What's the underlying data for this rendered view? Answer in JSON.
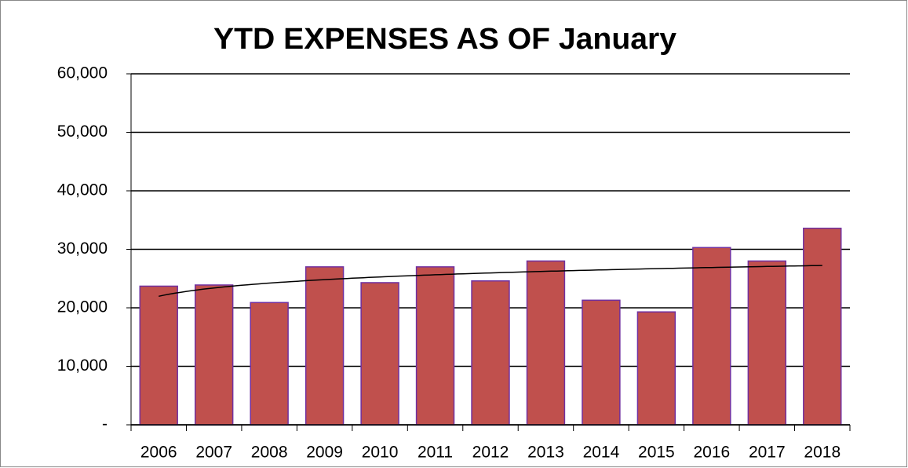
{
  "chart_data": {
    "type": "bar",
    "title": "YTD EXPENSES AS OF January",
    "categories": [
      "2006",
      "2007",
      "2008",
      "2009",
      "2010",
      "2011",
      "2012",
      "2013",
      "2014",
      "2015",
      "2016",
      "2017",
      "2018"
    ],
    "values": [
      23700,
      23900,
      20900,
      27000,
      24300,
      27000,
      24600,
      28000,
      21300,
      19300,
      30300,
      28000,
      33600
    ],
    "color": "#c0504d",
    "edge_color": "#7030a0",
    "ylim": [
      0,
      60000
    ],
    "yticks": [
      {
        "value": 0,
        "label": "-"
      },
      {
        "value": 10000,
        "label": "10,000"
      },
      {
        "value": 20000,
        "label": "20,000"
      },
      {
        "value": 30000,
        "label": "30,000"
      },
      {
        "value": 40000,
        "label": "40,000"
      },
      {
        "value": 50000,
        "label": "50,000"
      },
      {
        "value": 60000,
        "label": "60,000"
      }
    ],
    "grid": true,
    "trendline": "logarithmic"
  }
}
